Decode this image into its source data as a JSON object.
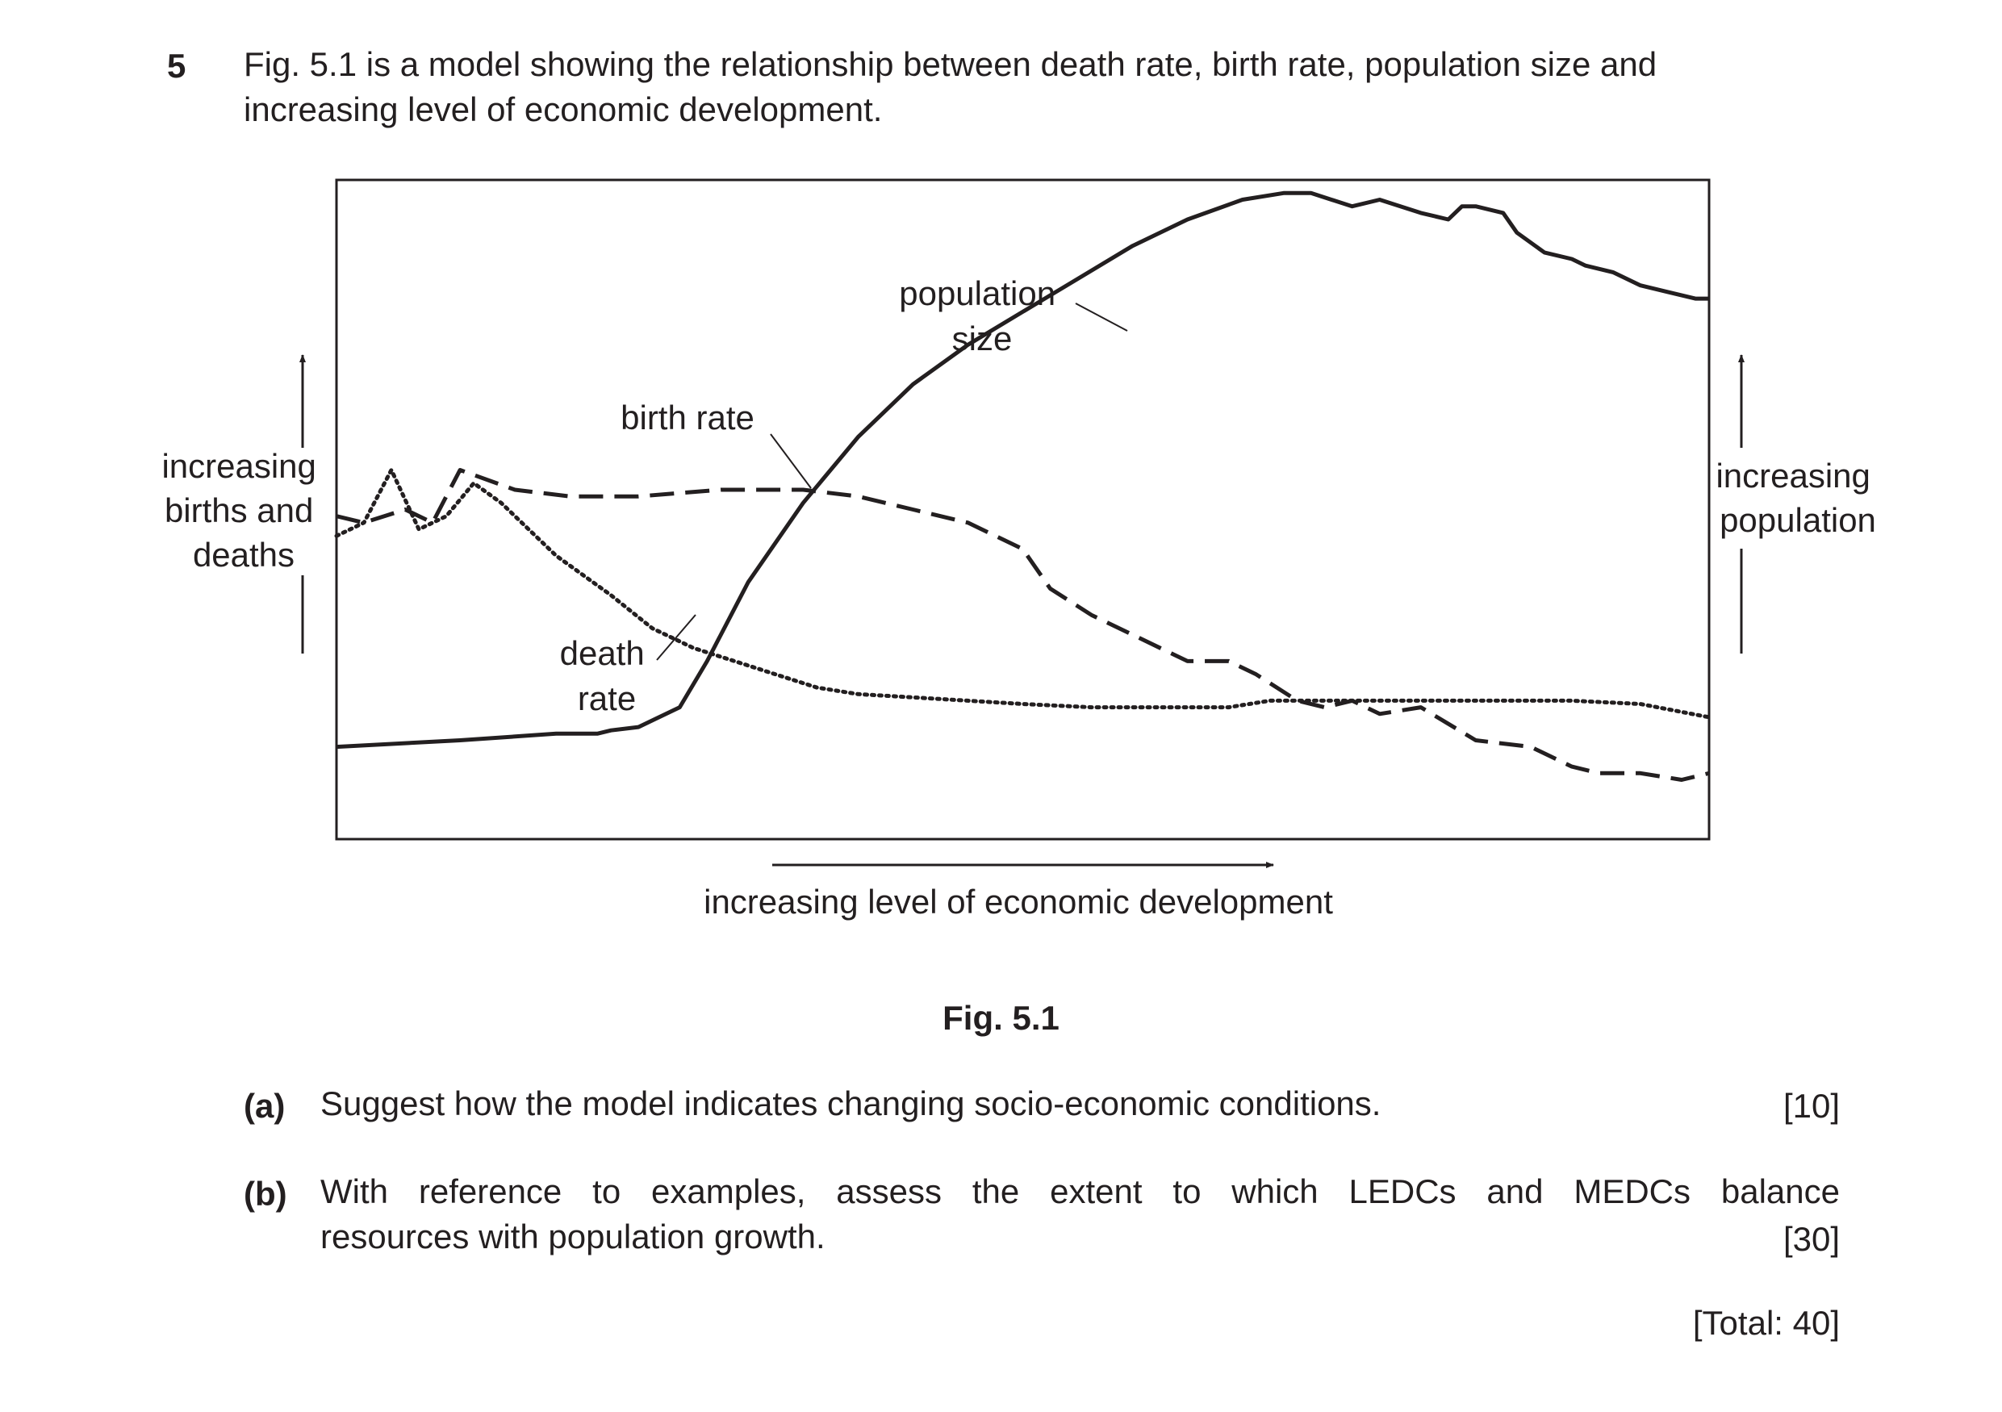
{
  "question": {
    "number": "5",
    "stem_line1": "Fig. 5.1 is a model showing the relationship between death rate, birth rate, population size and",
    "stem_line2": "increasing level of economic development."
  },
  "figure": {
    "caption": "Fig. 5.1",
    "left_axis_label": [
      "increasing",
      "births and",
      "deaths"
    ],
    "right_axis_label": [
      "increasing",
      "population"
    ],
    "x_axis_label": "increasing level of economic development",
    "annotations": {
      "population_size": [
        "population",
        "size"
      ],
      "birth_rate": "birth rate",
      "death_rate": [
        "death",
        "rate"
      ]
    }
  },
  "chart_data": {
    "type": "line",
    "title": "",
    "xlabel": "increasing level of economic development",
    "ylabel": "increasing births and deaths",
    "y2label": "increasing population",
    "xlim": [
      0,
      100
    ],
    "ylim": [
      0,
      100
    ],
    "grid": false,
    "legend": "none",
    "series": [
      {
        "name": "population size",
        "style": "solid",
        "x": [
          0,
          9,
          16,
          19,
          20,
          22,
          25,
          27,
          30,
          34,
          38,
          42,
          46,
          50,
          54,
          58,
          62,
          66,
          69,
          71,
          74,
          76,
          79,
          81,
          82,
          83,
          85,
          86,
          88,
          90,
          91,
          93,
          95,
          97,
          99,
          100
        ],
        "y": [
          14,
          15,
          16,
          16,
          16.5,
          17,
          20,
          27,
          39,
          51,
          61,
          69,
          75,
          80,
          85,
          90,
          94,
          97,
          98,
          98,
          96,
          97,
          95,
          94,
          96,
          96,
          95,
          92,
          89,
          88,
          87,
          86,
          84,
          83,
          82,
          82
        ]
      },
      {
        "name": "birth rate",
        "style": "dashed",
        "x": [
          0,
          2,
          5,
          7,
          9,
          13,
          17,
          22,
          28,
          34,
          38,
          42,
          46,
          50,
          52,
          55,
          58,
          62,
          65,
          67,
          70,
          72,
          74,
          76,
          79,
          83,
          87,
          88,
          90,
          92,
          95,
          98,
          100
        ],
        "y": [
          49,
          48,
          50,
          48,
          56,
          53,
          52,
          52,
          53,
          53,
          52,
          50,
          48,
          44,
          38,
          34,
          31,
          27,
          27,
          25,
          21,
          20,
          21,
          19,
          20,
          15,
          14,
          13,
          11,
          10,
          10,
          9,
          10
        ]
      },
      {
        "name": "death rate",
        "style": "dotted",
        "x": [
          0,
          2,
          4,
          6,
          8,
          10,
          12,
          14,
          16,
          18,
          20,
          23,
          26,
          29,
          32,
          35,
          38,
          42,
          46,
          50,
          55,
          60,
          65,
          68,
          70,
          75,
          80,
          85,
          90,
          95,
          100
        ],
        "y": [
          46,
          48,
          56,
          47,
          49,
          54,
          51,
          47,
          43,
          40,
          37,
          32,
          29,
          27,
          25,
          23,
          22,
          21.5,
          21,
          20.5,
          20,
          20,
          20,
          21,
          21,
          21,
          21,
          21,
          21,
          20.5,
          18.5
        ]
      }
    ]
  },
  "parts": [
    {
      "label": "(a)",
      "text_line1": "Suggest how the model indicates changing socio-economic conditions.",
      "marks": "[10]"
    },
    {
      "label": "(b)",
      "text_line1": "With reference to examples, assess the extent to which LEDCs and MEDCs balance",
      "text_line2": "resources with population growth.",
      "marks": "[30]"
    }
  ],
  "total": "[Total: 40]"
}
